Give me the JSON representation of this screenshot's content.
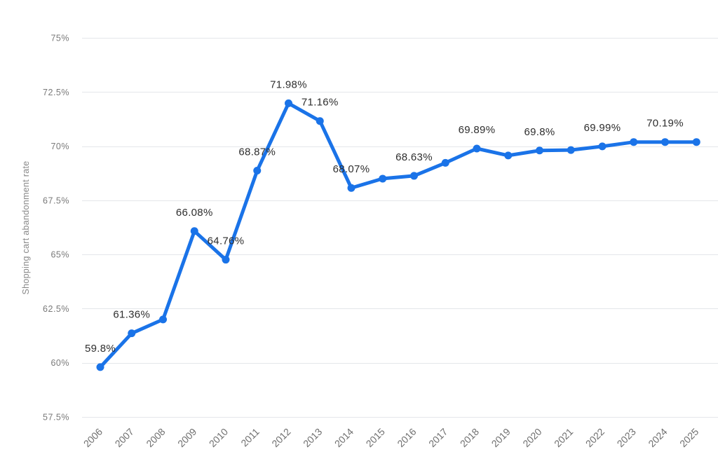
{
  "chart_data": {
    "type": "line",
    "ylabel": "Shopping cart abandonment rate",
    "categories": [
      "2006",
      "2007",
      "2008",
      "2009",
      "2010",
      "2011",
      "2012",
      "2013",
      "2014",
      "2015",
      "2016",
      "2017",
      "2018",
      "2019",
      "2020",
      "2021",
      "2022",
      "2023",
      "2024",
      "2025"
    ],
    "values": [
      59.8,
      61.36,
      62.0,
      66.08,
      64.76,
      68.87,
      71.98,
      71.16,
      68.07,
      68.5,
      68.63,
      69.23,
      69.89,
      69.57,
      69.8,
      69.82,
      69.99,
      70.19,
      70.19,
      70.19
    ],
    "data_labels": {
      "2006": "59.8%",
      "2007": "61.36%",
      "2009": "66.08%",
      "2010": "64.76%",
      "2011": "68.87%",
      "2012": "71.98%",
      "2013": "71.16%",
      "2014": "68.07%",
      "2016": "68.63%",
      "2018": "69.89%",
      "2020": "69.8%",
      "2022": "69.99%",
      "2024": "70.19%"
    },
    "yticks": [
      "57.5%",
      "60%",
      "62.5%",
      "65%",
      "67.5%",
      "70%",
      "72.5%",
      "75%"
    ],
    "ytick_values": [
      57.5,
      60,
      62.5,
      65,
      67.5,
      70,
      72.5,
      75
    ],
    "ylim": [
      57.5,
      75
    ],
    "grid": true,
    "legend": "none",
    "color": "#1a73e8"
  }
}
